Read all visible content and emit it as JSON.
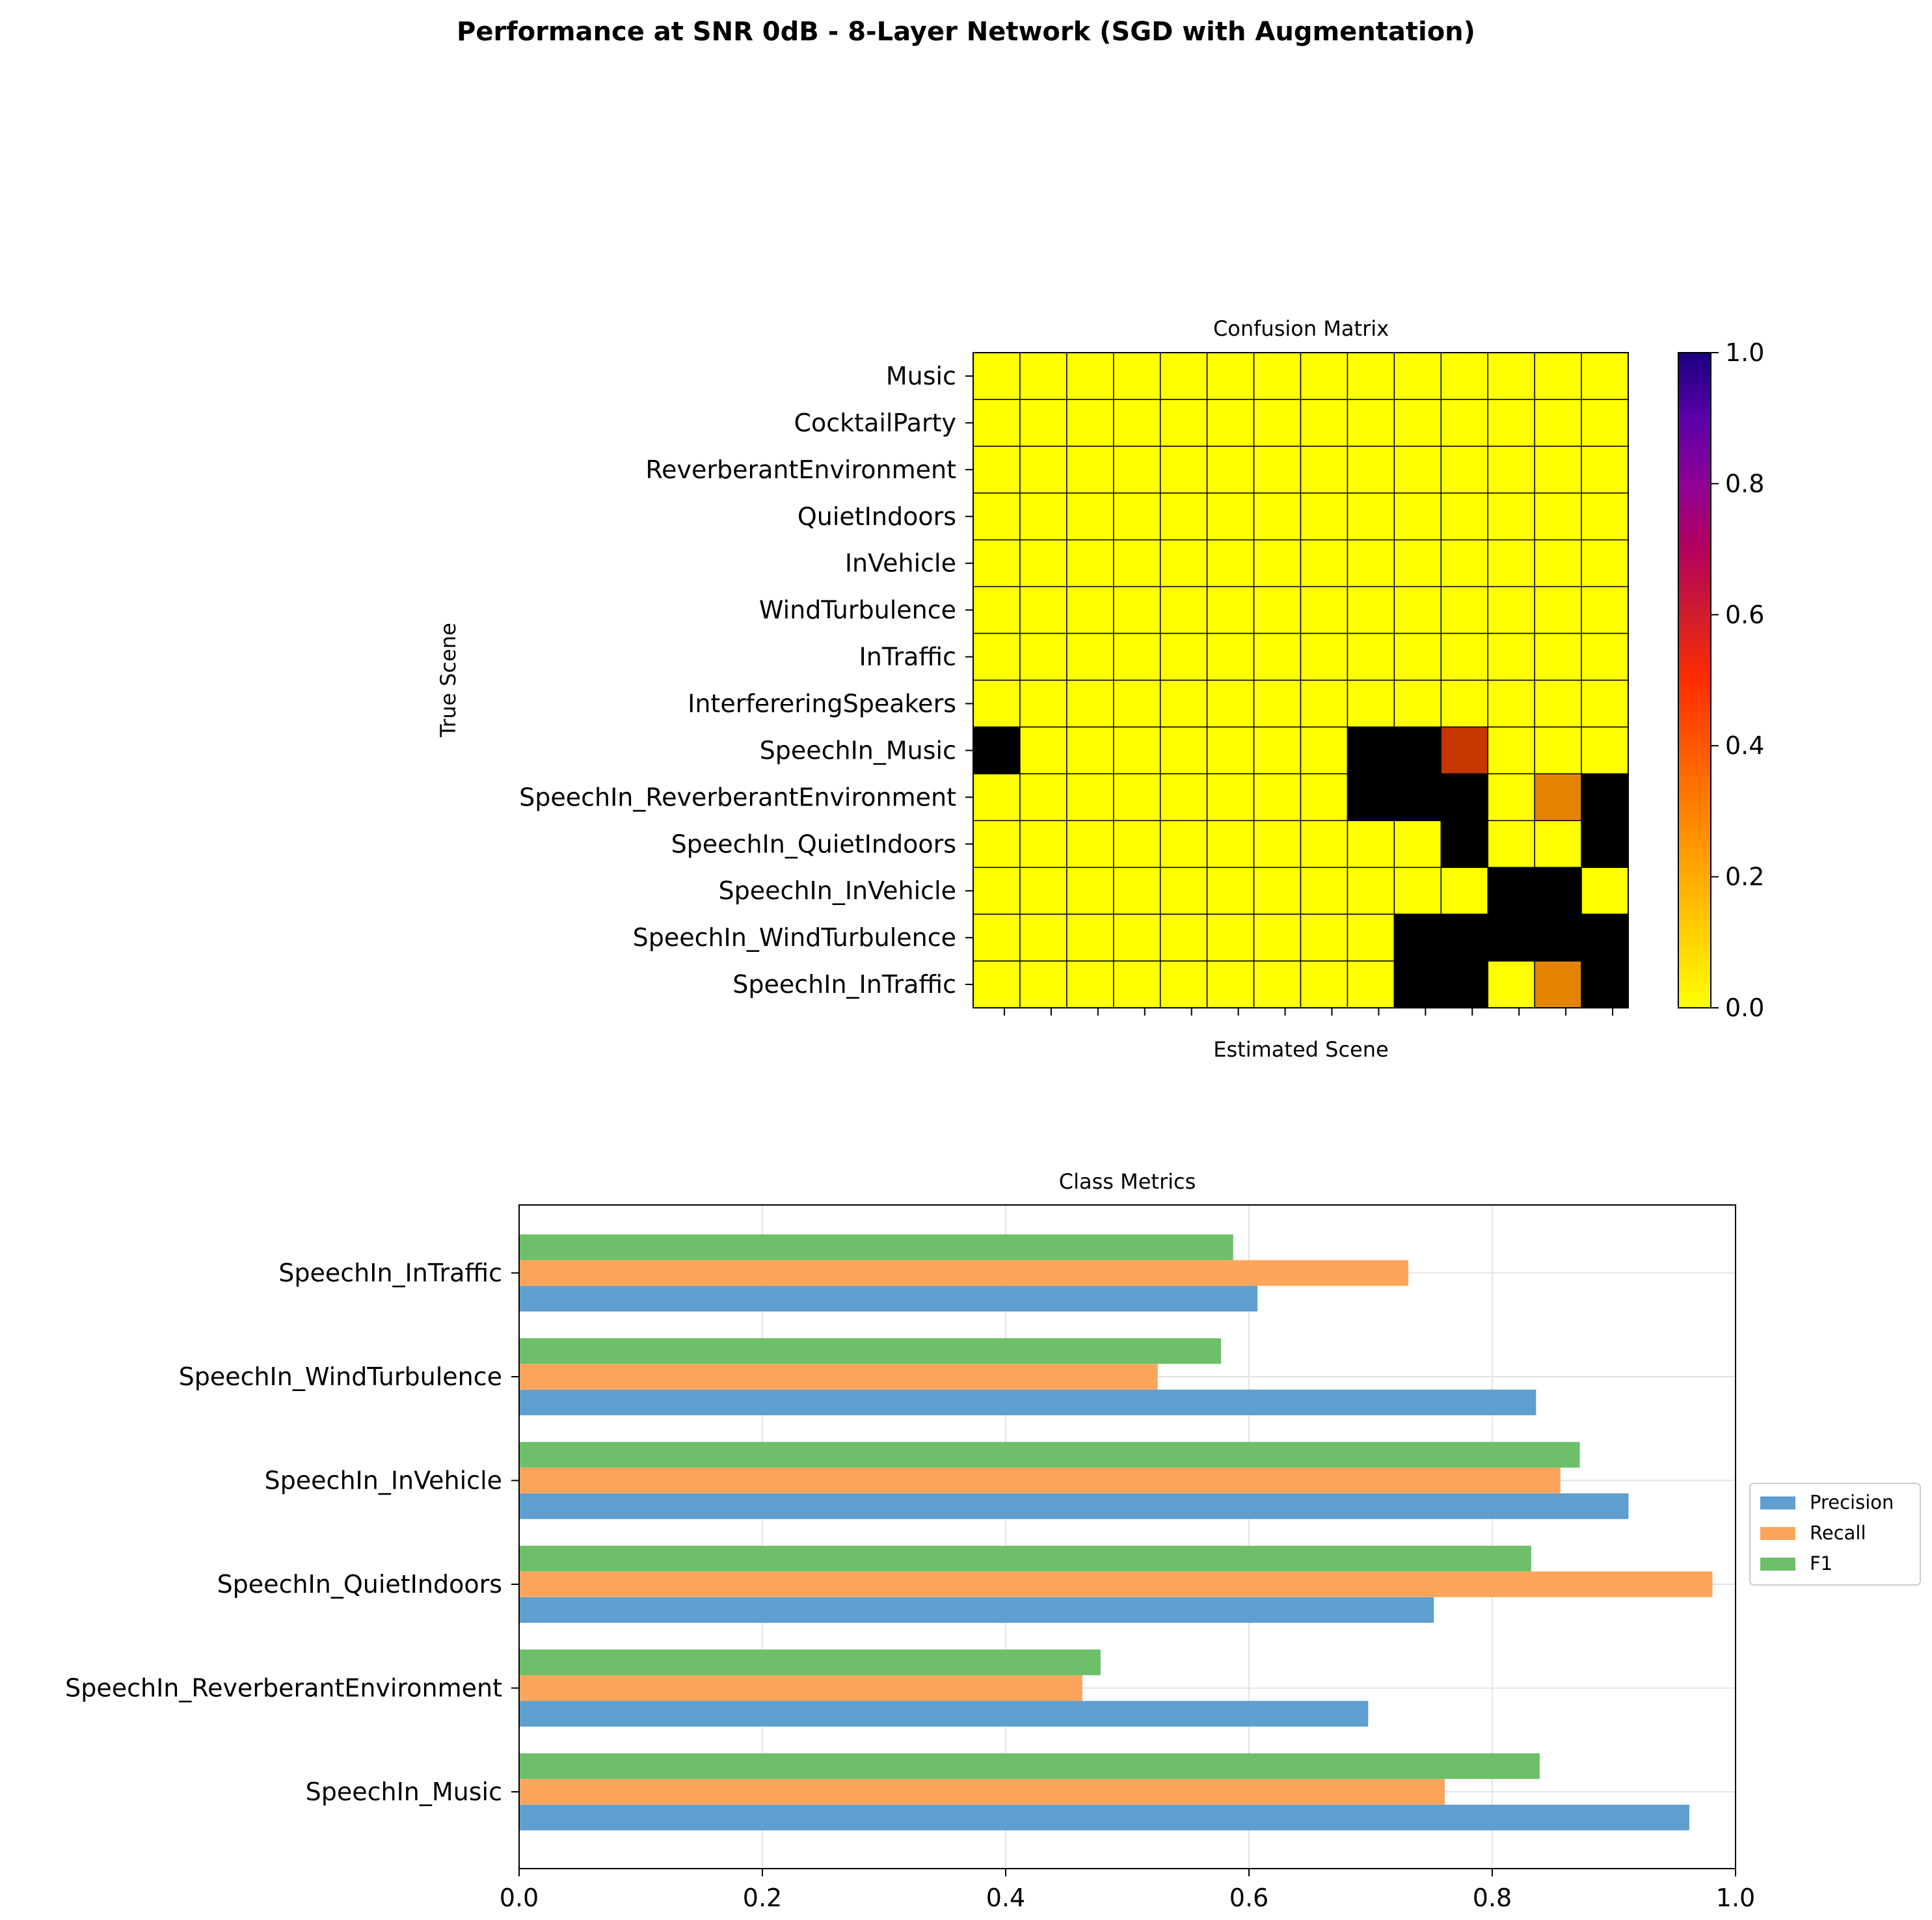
{
  "figure_title": "Performance at SNR 0dB - 8-Layer Network (SGD with Augmentation)",
  "colors": {
    "colormap": "gnuplot_r",
    "precision": "#5f9fcf",
    "recall": "#fba55c",
    "f1": "#6dbf6a",
    "grid": "#e3e3e3"
  },
  "chart_data": [
    {
      "type": "heatmap",
      "title": "Confusion Matrix",
      "xlabel": "Estimated Scene",
      "ylabel": "True Scene",
      "rows": [
        "Music",
        "CocktailParty",
        "ReverberantEnvironment",
        "QuietIndoors",
        "InVehicle",
        "WindTurbulence",
        "InTraffic",
        "InterfereringSpeakers",
        "SpeechIn_Music",
        "SpeechIn_ReverberantEnvironment",
        "SpeechIn_QuietIndoors",
        "SpeechIn_InVehicle",
        "SpeechIn_WindTurbulence",
        "SpeechIn_InTraffic"
      ],
      "x_tick_labels": [
        "",
        "",
        "",
        "",
        "",
        "",
        "",
        "",
        "",
        "",
        "",
        "",
        "",
        ""
      ],
      "values": [
        [
          0,
          0,
          0,
          0,
          0,
          0,
          0,
          0,
          0,
          0,
          0,
          0,
          0,
          0
        ],
        [
          0,
          0,
          0,
          0,
          0,
          0,
          0,
          0,
          0,
          0,
          0,
          0,
          0,
          0
        ],
        [
          0,
          0,
          0,
          0,
          0,
          0,
          0,
          0,
          0,
          0,
          0,
          0,
          0,
          0
        ],
        [
          0,
          0,
          0,
          0,
          0,
          0,
          0,
          0,
          0,
          0,
          0,
          0,
          0,
          0
        ],
        [
          0,
          0,
          0,
          0,
          0,
          0,
          0,
          0,
          0,
          0,
          0,
          0,
          0,
          0
        ],
        [
          0,
          0,
          0,
          0,
          0,
          0,
          0,
          0,
          0,
          0,
          0,
          0,
          0,
          0
        ],
        [
          0,
          0,
          0,
          0,
          0,
          0,
          0,
          0,
          0,
          0,
          0,
          0,
          0,
          0
        ],
        [
          0,
          0,
          0,
          0,
          0,
          0,
          0,
          0,
          0,
          0,
          0,
          0,
          0,
          0
        ],
        [
          1,
          0,
          0,
          0,
          0,
          0,
          0,
          0,
          1,
          1,
          0.4,
          0,
          0,
          0
        ],
        [
          0,
          0,
          0,
          0,
          0,
          0,
          0,
          0,
          1,
          1,
          1,
          0,
          0.2,
          1
        ],
        [
          0,
          0,
          0,
          0,
          0,
          0,
          0,
          0,
          0,
          0,
          1,
          0,
          0,
          1
        ],
        [
          0,
          0,
          0,
          0,
          0,
          0,
          0,
          0,
          0,
          0,
          0,
          1,
          1,
          0
        ],
        [
          0,
          0,
          0,
          0,
          0,
          0,
          0,
          0,
          0,
          1,
          1,
          1,
          1,
          1
        ],
        [
          0,
          0,
          0,
          0,
          0,
          0,
          0,
          0,
          0,
          1,
          1,
          0,
          0.2,
          1
        ]
      ],
      "colorbar": {
        "range": [
          0,
          1
        ],
        "ticks": [
          "0.0",
          "0.2",
          "0.4",
          "0.6",
          "0.8",
          "1.0"
        ]
      }
    },
    {
      "type": "bar",
      "orientation": "horizontal",
      "title": "Class Metrics",
      "xlabel": "",
      "ylabel": "",
      "xlim": [
        0,
        1
      ],
      "x_ticks": [
        "0.0",
        "0.2",
        "0.4",
        "0.6",
        "0.8",
        "1.0"
      ],
      "grid": true,
      "legend_position": "outside-right",
      "categories": [
        "SpeechIn_Music",
        "SpeechIn_ReverberantEnvironment",
        "SpeechIn_QuietIndoors",
        "SpeechIn_InVehicle",
        "SpeechIn_WindTurbulence",
        "SpeechIn_InTraffic"
      ],
      "series": [
        {
          "name": "Precision",
          "values": [
            0.962,
            0.698,
            0.752,
            0.912,
            0.836,
            0.607
          ]
        },
        {
          "name": "Recall",
          "values": [
            0.761,
            0.463,
            0.981,
            0.856,
            0.525,
            0.731
          ]
        },
        {
          "name": "F1",
          "values": [
            0.839,
            0.478,
            0.832,
            0.872,
            0.577,
            0.587
          ]
        }
      ]
    }
  ]
}
